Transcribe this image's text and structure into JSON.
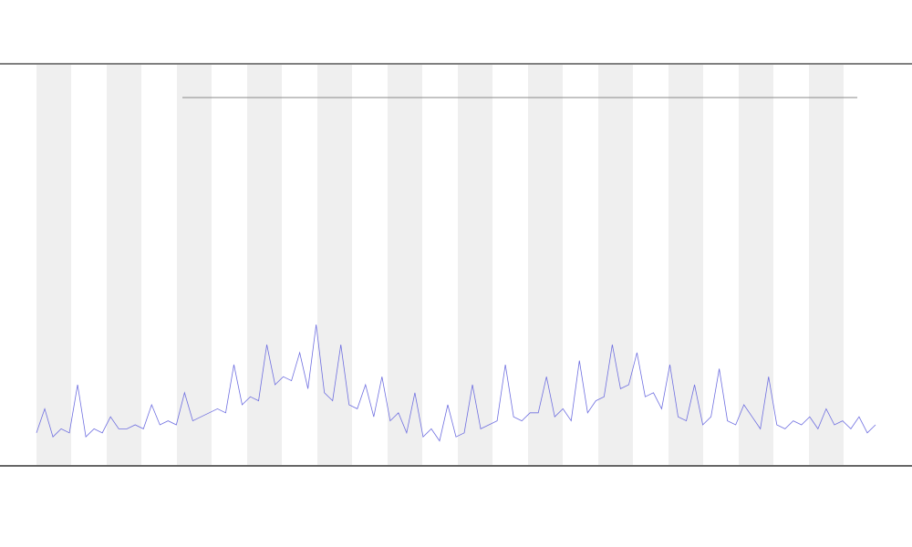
{
  "chart_data": {
    "type": "line",
    "xlim": [
      0,
      102
    ],
    "ylim": [
      0,
      100
    ],
    "x": [
      0,
      1,
      2,
      3,
      4,
      5,
      6,
      7,
      8,
      9,
      10,
      11,
      12,
      13,
      14,
      15,
      16,
      17,
      18,
      19,
      20,
      21,
      22,
      23,
      24,
      25,
      26,
      27,
      28,
      29,
      30,
      31,
      32,
      33,
      34,
      35,
      36,
      37,
      38,
      39,
      40,
      41,
      42,
      43,
      44,
      45,
      46,
      47,
      48,
      49,
      50,
      51,
      52,
      53,
      54,
      55,
      56,
      57,
      58,
      59,
      60,
      61,
      62,
      63,
      64,
      65,
      66,
      67,
      68,
      69,
      70,
      71,
      72,
      73,
      74,
      75,
      76,
      77,
      78,
      79,
      80,
      81,
      82,
      83,
      84,
      85,
      86,
      87,
      88,
      89,
      90,
      91,
      92,
      93,
      94,
      95,
      96,
      97,
      98,
      99,
      100,
      101,
      102
    ],
    "series": [
      {
        "color": "#6f6fe0",
        "values": [
          8,
          14,
          7,
          9,
          8,
          20,
          7,
          9,
          8,
          12,
          9,
          9,
          10,
          9,
          15,
          10,
          11,
          10,
          18,
          11,
          12,
          13,
          14,
          13,
          25,
          15,
          17,
          16,
          30,
          20,
          22,
          21,
          28,
          19,
          35,
          18,
          16,
          30,
          15,
          14,
          20,
          12,
          22,
          11,
          13,
          8,
          18,
          7,
          9,
          6,
          15,
          7,
          8,
          20,
          9,
          10,
          11,
          25,
          12,
          11,
          13,
          13,
          22,
          12,
          14,
          11,
          26,
          13,
          16,
          17,
          30,
          19,
          20,
          28,
          17,
          18,
          14,
          25,
          12,
          11,
          20,
          10,
          12,
          24,
          11,
          10,
          15,
          12,
          9,
          22,
          10,
          9,
          11,
          10,
          12,
          9,
          14,
          10,
          11,
          9,
          12,
          8,
          10
        ]
      }
    ]
  }
}
